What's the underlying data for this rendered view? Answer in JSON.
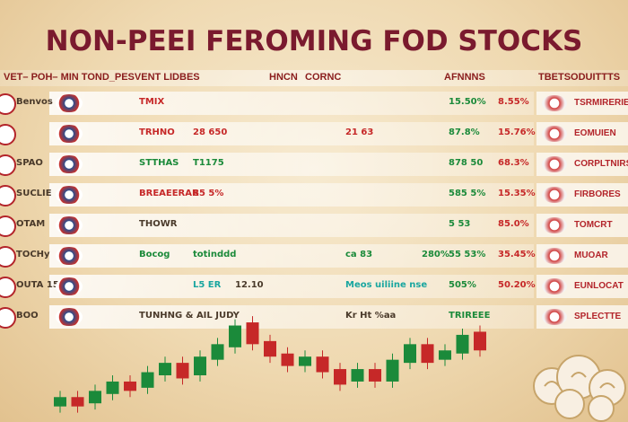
{
  "title": "NON-PEEI FEROMING FOD STOCKS",
  "subtitle": {
    "left": "VET– POH– MIN  TOND_PESVENT LIDBES",
    "mid1": "HNCN",
    "mid2": "CORNC",
    "mid3": "AFNNNS",
    "right": "TBETSODUITTTS"
  },
  "colors": {
    "title": "#7a1a2e",
    "up": "#1b8a3a",
    "down": "#c62828",
    "accent": "#1aa6a0"
  },
  "rows": [
    {
      "ticker": "Benvos",
      "brand": "TMIX",
      "c1": "",
      "c2": "",
      "v1": "",
      "v2": "",
      "v3": "15.50%",
      "v4": "8.55%",
      "v5": "",
      "tone": "red",
      "rbrand": "TSRMIRERIE"
    },
    {
      "ticker": "",
      "brand": "TRHNO",
      "c1": "28  650",
      "c2": "",
      "v1": "21 63",
      "v2": "",
      "v3": "87.8%",
      "v4": "15.76%",
      "v5": "",
      "tone": "red",
      "rbrand": "EOMUIEN"
    },
    {
      "ticker": "SPAO",
      "brand": "STTHAS",
      "c1": "T1175",
      "c2": "",
      "v1": "",
      "v2": "",
      "v3": "878 50",
      "v4": "68.3%",
      "v5": "",
      "tone": "green",
      "rbrand": "CORPLTNIRS"
    },
    {
      "ticker": "SUCLIE",
      "brand": "BREAEERAR",
      "c1": "85  5%",
      "c2": "",
      "v1": "",
      "v2": "",
      "v3": "585 5%",
      "v4": "15.35%",
      "v5": "",
      "tone": "red",
      "rbrand": "FIRBORES"
    },
    {
      "ticker": "OTAM",
      "brand": "THOWR",
      "c1": "",
      "c2": "",
      "v1": "",
      "v2": "",
      "v3": "5 53",
      "v4": "85.0%",
      "v5": "",
      "tone": "dark",
      "rbrand": "TOMCRT"
    },
    {
      "ticker": "TOCHy",
      "brand": "Bocog",
      "c1": "totinddd",
      "c2": "",
      "v1": "ca 83",
      "v2": "280%",
      "v3": "55 53%",
      "v4": "35.45%",
      "v5": "",
      "tone": "green",
      "rbrand": "MUOAR"
    },
    {
      "ticker": "OUTA 15",
      "brand": "",
      "c1": "L5 ER",
      "c2": "12.10",
      "v1": "Meos uiliine nse",
      "v2": "",
      "v3": "505%",
      "v4": "50.20%",
      "v5": "",
      "tone": "teal",
      "rbrand": "EUNLOCAT"
    },
    {
      "ticker": "BOO",
      "brand": "TUNHNG & AIL JUDY",
      "c1": "",
      "c2": "",
      "v1": "Kr Ht %aa",
      "v2": "",
      "v3": "TRIREEE",
      "v4": "",
      "v5": "",
      "tone": "dark",
      "rbrand": "SPLECTTE"
    }
  ],
  "chart_data": {
    "type": "candlestick",
    "candles": [
      {
        "dir": "up",
        "open": 30,
        "close": 36
      },
      {
        "dir": "down",
        "open": 36,
        "close": 30
      },
      {
        "dir": "up",
        "open": 32,
        "close": 40
      },
      {
        "dir": "up",
        "open": 38,
        "close": 46
      },
      {
        "dir": "down",
        "open": 46,
        "close": 40
      },
      {
        "dir": "up",
        "open": 42,
        "close": 52
      },
      {
        "dir": "up",
        "open": 50,
        "close": 58
      },
      {
        "dir": "down",
        "open": 58,
        "close": 48
      },
      {
        "dir": "up",
        "open": 50,
        "close": 62
      },
      {
        "dir": "up",
        "open": 60,
        "close": 70
      },
      {
        "dir": "up",
        "open": 68,
        "close": 82
      },
      {
        "dir": "down",
        "open": 84,
        "close": 70
      },
      {
        "dir": "down",
        "open": 72,
        "close": 62
      },
      {
        "dir": "down",
        "open": 64,
        "close": 56
      },
      {
        "dir": "up",
        "open": 56,
        "close": 62
      },
      {
        "dir": "down",
        "open": 62,
        "close": 52
      },
      {
        "dir": "down",
        "open": 54,
        "close": 44
      },
      {
        "dir": "up",
        "open": 46,
        "close": 54
      },
      {
        "dir": "down",
        "open": 54,
        "close": 46
      },
      {
        "dir": "up",
        "open": 46,
        "close": 60
      },
      {
        "dir": "up",
        "open": 58,
        "close": 70
      },
      {
        "dir": "down",
        "open": 70,
        "close": 58
      },
      {
        "dir": "up",
        "open": 60,
        "close": 66
      },
      {
        "dir": "up",
        "open": 64,
        "close": 76
      },
      {
        "dir": "down",
        "open": 78,
        "close": 66
      }
    ],
    "ylim": [
      20,
      95
    ]
  }
}
